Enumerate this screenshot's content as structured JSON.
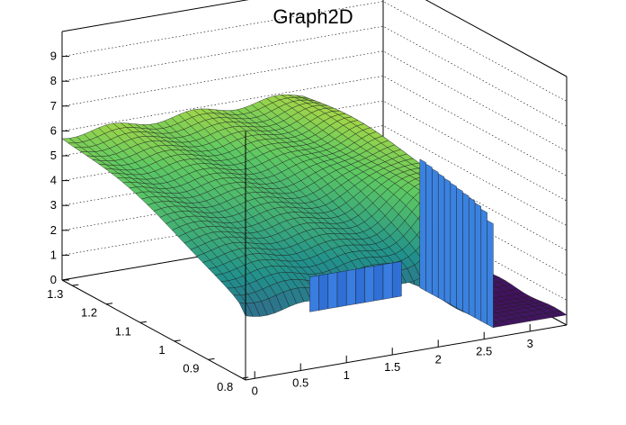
{
  "chart_data": {
    "type": "surface",
    "title": "Graph2D",
    "x_ticks": [
      "0",
      "0.5",
      "1",
      "1.5",
      "2",
      "2.5",
      "3"
    ],
    "y_ticks": [
      "0.8",
      "0.9",
      "1",
      "1.1",
      "1.2",
      "1.3"
    ],
    "z_ticks": [
      "0",
      "1",
      "2",
      "3",
      "4",
      "5",
      "6",
      "7",
      "8",
      "9"
    ],
    "xlim": [
      -0.1,
      3.4
    ],
    "ylim": [
      0.79,
      1.33
    ],
    "zlim": [
      0,
      10
    ],
    "grid": true,
    "colormap": "viridis",
    "surface_summary": {
      "plateau_z_at_high_y": 5.8,
      "plateau_z_at_low_y": 2.6,
      "ridge_peak_z": 4.8,
      "ridge_peak_x": 2.45,
      "cliff_x": 2.6,
      "floor_z_beyond_cliff": 0.4,
      "blue_block_x_range": [
        0.6,
        1.6
      ],
      "blue_block_z_range": [
        2.3,
        3.7
      ]
    }
  }
}
